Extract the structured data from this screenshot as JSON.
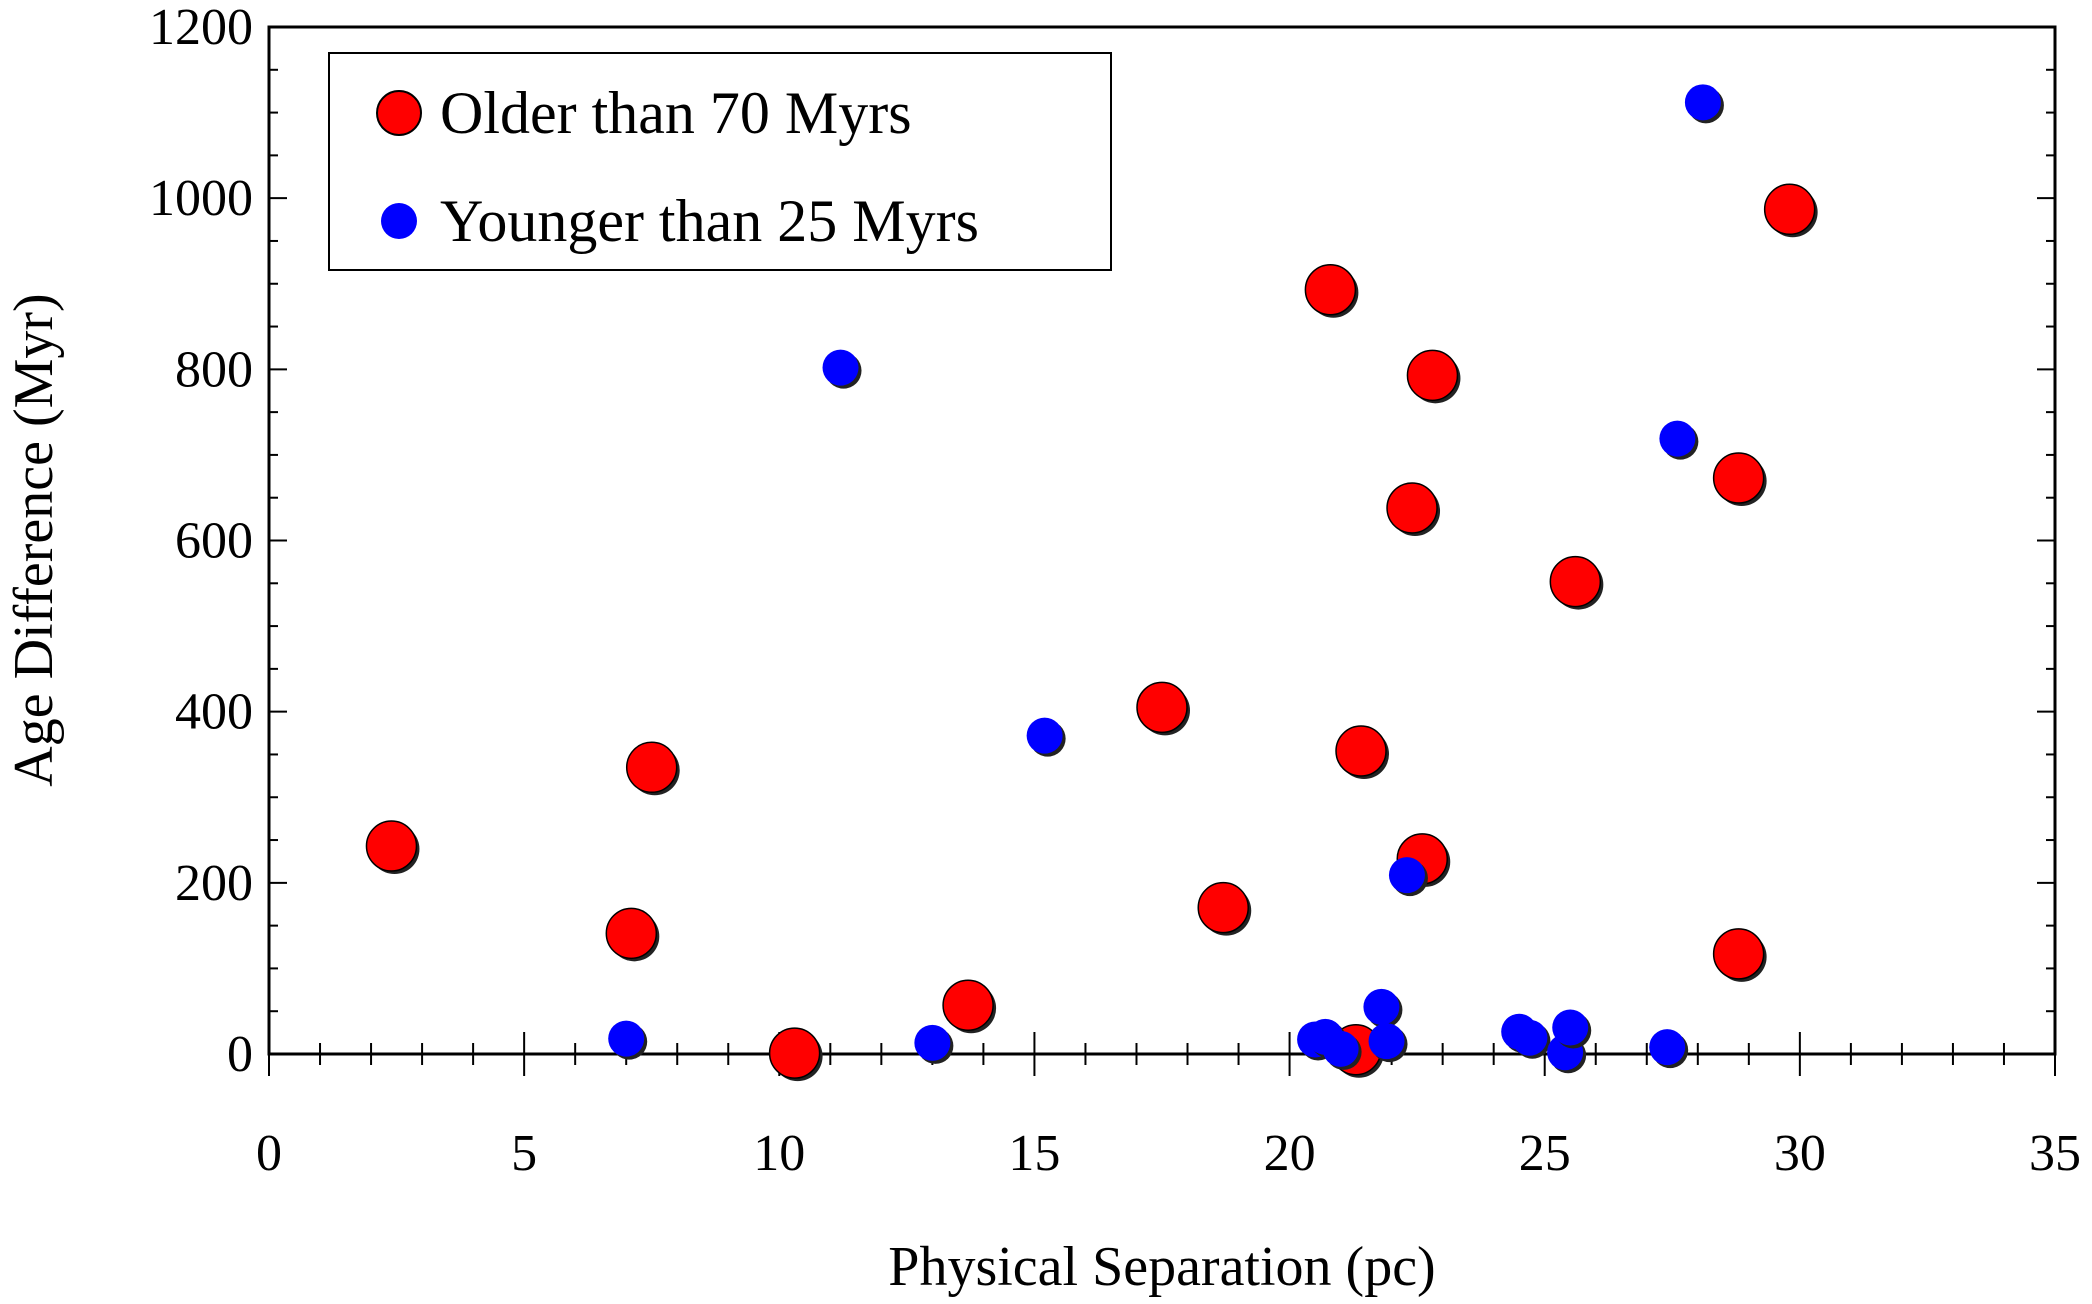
{
  "chart_data": {
    "type": "scatter",
    "xlabel": "Physical Separation (pc)",
    "ylabel": "Age Difference (Myr)",
    "xlim": [
      0,
      35
    ],
    "ylim": [
      0,
      1200
    ],
    "x_ticks": [
      "0",
      "5",
      "10",
      "15",
      "20",
      "25",
      "30",
      "35"
    ],
    "y_ticks": [
      "0",
      "200",
      "400",
      "600",
      "800",
      "1000",
      "1200"
    ],
    "grid": false,
    "legend_position": "top-left",
    "series": [
      {
        "name": "Older than 70 Myrs",
        "color": "#ff0000",
        "points": [
          {
            "x": 2.4,
            "y": 243
          },
          {
            "x": 7.1,
            "y": 141
          },
          {
            "x": 7.5,
            "y": 335
          },
          {
            "x": 10.3,
            "y": 1
          },
          {
            "x": 13.7,
            "y": 57
          },
          {
            "x": 17.5,
            "y": 405
          },
          {
            "x": 18.7,
            "y": 171
          },
          {
            "x": 20.8,
            "y": 893
          },
          {
            "x": 21.3,
            "y": 5
          },
          {
            "x": 21.4,
            "y": 354
          },
          {
            "x": 22.4,
            "y": 638
          },
          {
            "x": 22.6,
            "y": 228
          },
          {
            "x": 22.8,
            "y": 793
          },
          {
            "x": 25.6,
            "y": 552
          },
          {
            "x": 28.8,
            "y": 673
          },
          {
            "x": 28.8,
            "y": 117
          },
          {
            "x": 29.8,
            "y": 987
          }
        ]
      },
      {
        "name": "Younger than 25 Myrs",
        "color": "#0000ff",
        "points": [
          {
            "x": 7.0,
            "y": 18
          },
          {
            "x": 11.2,
            "y": 802
          },
          {
            "x": 13.0,
            "y": 13
          },
          {
            "x": 15.2,
            "y": 372
          },
          {
            "x": 20.5,
            "y": 17
          },
          {
            "x": 20.7,
            "y": 20
          },
          {
            "x": 21.0,
            "y": 6
          },
          {
            "x": 21.8,
            "y": 55
          },
          {
            "x": 21.9,
            "y": 15
          },
          {
            "x": 22.3,
            "y": 209
          },
          {
            "x": 24.5,
            "y": 26
          },
          {
            "x": 24.7,
            "y": 19
          },
          {
            "x": 25.4,
            "y": 2
          },
          {
            "x": 25.5,
            "y": 31
          },
          {
            "x": 27.4,
            "y": 8
          },
          {
            "x": 27.6,
            "y": 719
          },
          {
            "x": 28.1,
            "y": 1112
          }
        ]
      }
    ]
  }
}
